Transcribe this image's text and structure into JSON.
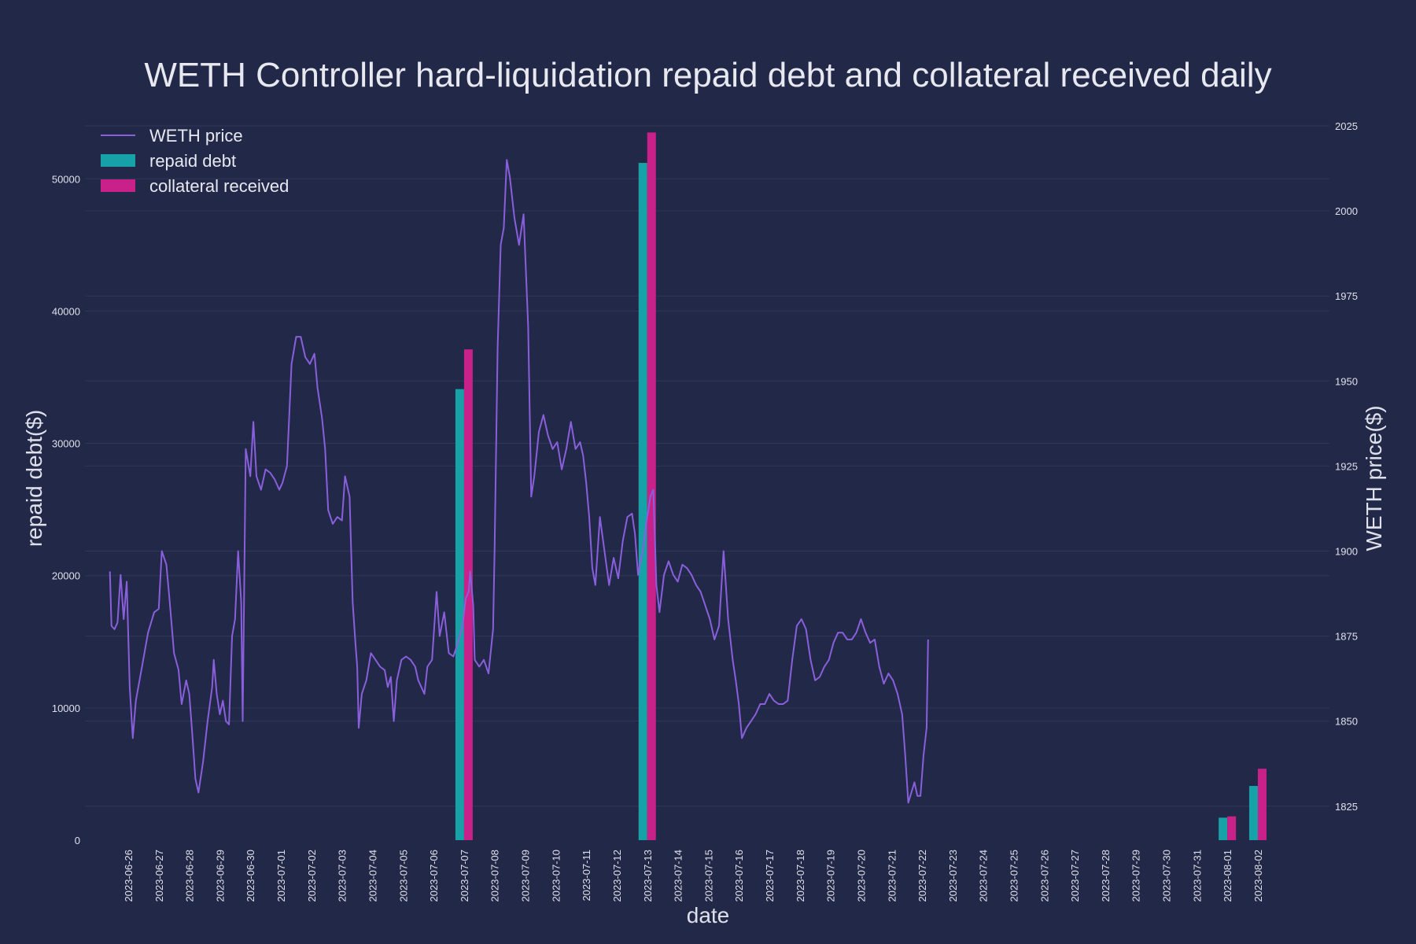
{
  "chart_data": {
    "type": "bar+line",
    "title": "WETH Controller hard-liquidation repaid debt and collateral received daily",
    "xlabel": "date",
    "ylabel_left": "repaid debt($)",
    "ylabel_right": "WETH price($)",
    "ylim_left": [
      0,
      54000
    ],
    "ylim_right": [
      1815,
      2025
    ],
    "yticks_left": [
      0,
      10000,
      20000,
      30000,
      40000,
      50000
    ],
    "yticks_right": [
      1825,
      1850,
      1875,
      1900,
      1925,
      1950,
      1975,
      2000,
      2025
    ],
    "categories": [
      "2023-06-26",
      "2023-06-27",
      "2023-06-28",
      "2023-06-29",
      "2023-06-30",
      "2023-07-01",
      "2023-07-02",
      "2023-07-03",
      "2023-07-04",
      "2023-07-05",
      "2023-07-06",
      "2023-07-07",
      "2023-07-08",
      "2023-07-09",
      "2023-07-10",
      "2023-07-11",
      "2023-07-12",
      "2023-07-13",
      "2023-07-14",
      "2023-07-15",
      "2023-07-16",
      "2023-07-17",
      "2023-07-18",
      "2023-07-19",
      "2023-07-20",
      "2023-07-21",
      "2023-07-22",
      "2023-07-23",
      "2023-07-24",
      "2023-07-25",
      "2023-07-26",
      "2023-07-27",
      "2023-07-28",
      "2023-07-29",
      "2023-07-30",
      "2023-07-31",
      "2023-08-01",
      "2023-08-02"
    ],
    "legend": {
      "placement": "top-left",
      "entries": [
        "WETH price",
        "repaid debt",
        "collateral received"
      ]
    },
    "colors": {
      "price": "#8a5fdc",
      "repaid_debt": "#17a2a8",
      "collateral_received": "#c8218a",
      "background": "#222848",
      "grid": "#2f3659"
    },
    "series": [
      {
        "name": "repaid debt",
        "kind": "bar",
        "points": [
          {
            "date": "2023-07-07",
            "value": 34100
          },
          {
            "date": "2023-07-13",
            "value": 51200
          },
          {
            "date": "2023-08-01",
            "value": 1700
          },
          {
            "date": "2023-08-02",
            "value": 4100
          }
        ]
      },
      {
        "name": "collateral received",
        "kind": "bar",
        "points": [
          {
            "date": "2023-07-07",
            "value": 37100
          },
          {
            "date": "2023-07-13",
            "value": 53500
          },
          {
            "date": "2023-08-01",
            "value": 1800
          },
          {
            "date": "2023-08-02",
            "value": 5400
          }
        ]
      },
      {
        "name": "WETH price",
        "kind": "line",
        "axis": "right",
        "points": [
          [
            -0.6,
            1894
          ],
          [
            -0.55,
            1878
          ],
          [
            -0.45,
            1877
          ],
          [
            -0.35,
            1879
          ],
          [
            -0.25,
            1893
          ],
          [
            -0.15,
            1880
          ],
          [
            -0.05,
            1891
          ],
          [
            0.05,
            1860
          ],
          [
            0.15,
            1845
          ],
          [
            0.25,
            1856
          ],
          [
            0.45,
            1866
          ],
          [
            0.65,
            1876
          ],
          [
            0.85,
            1882
          ],
          [
            1.0,
            1883
          ],
          [
            1.1,
            1900
          ],
          [
            1.25,
            1896
          ],
          [
            1.35,
            1886
          ],
          [
            1.5,
            1870
          ],
          [
            1.65,
            1865
          ],
          [
            1.75,
            1855
          ],
          [
            1.9,
            1862
          ],
          [
            2.0,
            1858
          ],
          [
            2.1,
            1846
          ],
          [
            2.2,
            1833
          ],
          [
            2.3,
            1829
          ],
          [
            2.45,
            1838
          ],
          [
            2.6,
            1850
          ],
          [
            2.75,
            1860
          ],
          [
            2.8,
            1868
          ],
          [
            2.9,
            1858
          ],
          [
            3.0,
            1852
          ],
          [
            3.1,
            1856
          ],
          [
            3.2,
            1850
          ],
          [
            3.3,
            1849
          ],
          [
            3.4,
            1875
          ],
          [
            3.5,
            1880
          ],
          [
            3.6,
            1900
          ],
          [
            3.7,
            1885
          ],
          [
            3.75,
            1850
          ],
          [
            3.85,
            1930
          ],
          [
            4.0,
            1922
          ],
          [
            4.1,
            1938
          ],
          [
            4.2,
            1922
          ],
          [
            4.35,
            1918
          ],
          [
            4.5,
            1924
          ],
          [
            4.65,
            1923
          ],
          [
            4.8,
            1921
          ],
          [
            4.95,
            1918
          ],
          [
            5.05,
            1920
          ],
          [
            5.2,
            1925
          ],
          [
            5.35,
            1955
          ],
          [
            5.5,
            1963
          ],
          [
            5.65,
            1963
          ],
          [
            5.8,
            1957
          ],
          [
            5.95,
            1955
          ],
          [
            6.1,
            1958
          ],
          [
            6.2,
            1948
          ],
          [
            6.35,
            1939
          ],
          [
            6.45,
            1930
          ],
          [
            6.55,
            1912
          ],
          [
            6.7,
            1908
          ],
          [
            6.85,
            1910
          ],
          [
            7.0,
            1909
          ],
          [
            7.1,
            1922
          ],
          [
            7.25,
            1916
          ],
          [
            7.35,
            1885
          ],
          [
            7.45,
            1872
          ],
          [
            7.5,
            1866
          ],
          [
            7.55,
            1848
          ],
          [
            7.65,
            1858
          ],
          [
            7.8,
            1862
          ],
          [
            7.95,
            1870
          ],
          [
            8.1,
            1868
          ],
          [
            8.25,
            1866
          ],
          [
            8.4,
            1865
          ],
          [
            8.5,
            1860
          ],
          [
            8.6,
            1863
          ],
          [
            8.7,
            1850
          ],
          [
            8.8,
            1862
          ],
          [
            8.95,
            1868
          ],
          [
            9.1,
            1869
          ],
          [
            9.25,
            1868
          ],
          [
            9.4,
            1866
          ],
          [
            9.5,
            1862
          ],
          [
            9.6,
            1860
          ],
          [
            9.7,
            1858
          ],
          [
            9.8,
            1866
          ],
          [
            9.95,
            1868
          ],
          [
            10.1,
            1888
          ],
          [
            10.2,
            1875
          ],
          [
            10.35,
            1882
          ],
          [
            10.5,
            1870
          ],
          [
            10.65,
            1869
          ],
          [
            10.8,
            1873
          ],
          [
            10.95,
            1878
          ],
          [
            11.05,
            1886
          ],
          [
            11.15,
            1888
          ],
          [
            11.2,
            1894
          ],
          [
            11.3,
            1884
          ],
          [
            11.35,
            1868
          ],
          [
            11.5,
            1866
          ],
          [
            11.65,
            1868
          ],
          [
            11.8,
            1864
          ],
          [
            11.95,
            1877
          ],
          [
            12.0,
            1900
          ],
          [
            12.1,
            1960
          ],
          [
            12.2,
            1990
          ],
          [
            12.3,
            1995
          ],
          [
            12.4,
            2015
          ],
          [
            12.5,
            2010
          ],
          [
            12.65,
            1998
          ],
          [
            12.8,
            1990
          ],
          [
            12.95,
            1999
          ],
          [
            13.1,
            1966
          ],
          [
            13.2,
            1916
          ],
          [
            13.3,
            1922
          ],
          [
            13.45,
            1935
          ],
          [
            13.6,
            1940
          ],
          [
            13.75,
            1934
          ],
          [
            13.9,
            1930
          ],
          [
            14.05,
            1932
          ],
          [
            14.2,
            1924
          ],
          [
            14.35,
            1930
          ],
          [
            14.5,
            1938
          ],
          [
            14.65,
            1930
          ],
          [
            14.8,
            1932
          ],
          [
            14.9,
            1928
          ],
          [
            15.0,
            1920
          ],
          [
            15.1,
            1910
          ],
          [
            15.2,
            1895
          ],
          [
            15.3,
            1890
          ],
          [
            15.45,
            1910
          ],
          [
            15.6,
            1900
          ],
          [
            15.75,
            1890
          ],
          [
            15.9,
            1898
          ],
          [
            16.05,
            1892
          ],
          [
            16.2,
            1903
          ],
          [
            16.35,
            1910
          ],
          [
            16.5,
            1911
          ],
          [
            16.6,
            1905
          ],
          [
            16.7,
            1893
          ],
          [
            16.85,
            1900
          ],
          [
            17.0,
            1910
          ],
          [
            17.1,
            1916
          ],
          [
            17.2,
            1918
          ],
          [
            17.3,
            1890
          ],
          [
            17.4,
            1882
          ],
          [
            17.55,
            1893
          ],
          [
            17.7,
            1897
          ],
          [
            17.85,
            1893
          ],
          [
            18.0,
            1891
          ],
          [
            18.15,
            1896
          ],
          [
            18.3,
            1895
          ],
          [
            18.45,
            1893
          ],
          [
            18.6,
            1890
          ],
          [
            18.75,
            1888
          ],
          [
            18.9,
            1884
          ],
          [
            19.05,
            1880
          ],
          [
            19.2,
            1874
          ],
          [
            19.35,
            1878
          ],
          [
            19.5,
            1900
          ],
          [
            19.65,
            1880
          ],
          [
            19.8,
            1868
          ],
          [
            19.9,
            1862
          ],
          [
            20.0,
            1855
          ],
          [
            20.1,
            1845
          ],
          [
            20.25,
            1848
          ],
          [
            20.4,
            1850
          ],
          [
            20.55,
            1852
          ],
          [
            20.7,
            1855
          ],
          [
            20.85,
            1855
          ],
          [
            21.0,
            1858
          ],
          [
            21.15,
            1856
          ],
          [
            21.3,
            1855
          ],
          [
            21.45,
            1855
          ],
          [
            21.6,
            1856
          ],
          [
            21.75,
            1868
          ],
          [
            21.9,
            1878
          ],
          [
            22.05,
            1880
          ],
          [
            22.2,
            1877
          ],
          [
            22.35,
            1868
          ],
          [
            22.5,
            1862
          ],
          [
            22.65,
            1863
          ],
          [
            22.8,
            1866
          ],
          [
            22.95,
            1868
          ],
          [
            23.1,
            1873
          ],
          [
            23.25,
            1876
          ],
          [
            23.4,
            1876
          ],
          [
            23.55,
            1874
          ],
          [
            23.7,
            1874
          ],
          [
            23.85,
            1876
          ],
          [
            24.0,
            1880
          ],
          [
            24.15,
            1876
          ],
          [
            24.3,
            1873
          ],
          [
            24.45,
            1874
          ],
          [
            24.6,
            1866
          ],
          [
            24.75,
            1861
          ],
          [
            24.9,
            1864
          ],
          [
            25.05,
            1862
          ],
          [
            25.2,
            1858
          ],
          [
            25.35,
            1852
          ],
          [
            25.45,
            1840
          ],
          [
            25.55,
            1826
          ],
          [
            25.65,
            1829
          ],
          [
            25.75,
            1832
          ],
          [
            25.85,
            1828
          ],
          [
            25.95,
            1828
          ],
          [
            26.05,
            1840
          ],
          [
            26.15,
            1848
          ],
          [
            26.2,
            1874
          ]
        ]
      }
    ]
  }
}
